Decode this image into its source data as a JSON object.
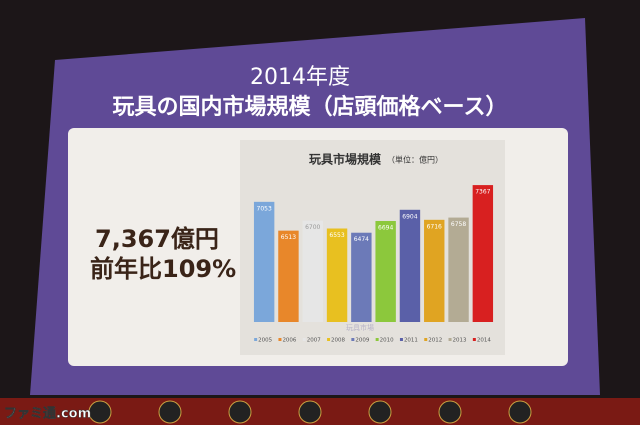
{
  "chart_data": {
    "type": "bar",
    "heading": "2014年度",
    "subheading": "玩具の国内市場規模（店頭価格ベース）",
    "headline_value": "7,367億円",
    "headline_growth": "前年比109%",
    "title": "玩具市場規模",
    "unit": "（単位：億円）",
    "legend_label": "玩具市場",
    "categories": [
      "2005",
      "2006",
      "2007",
      "2008",
      "2009",
      "2010",
      "2011",
      "2012",
      "2013",
      "2014"
    ],
    "values": [
      7053,
      6513,
      6700,
      6553,
      6474,
      6694,
      6904,
      6716,
      6758,
      7367
    ],
    "colors": [
      "#7ba7da",
      "#e8872a",
      "#e6e6e6",
      "#e8c020",
      "#6c7ab8",
      "#8cc83c",
      "#5a60a8",
      "#e0a422",
      "#b3ab94",
      "#d82020"
    ],
    "ylim": [
      4800,
      7500
    ]
  },
  "watermark": "ファミ通.com"
}
